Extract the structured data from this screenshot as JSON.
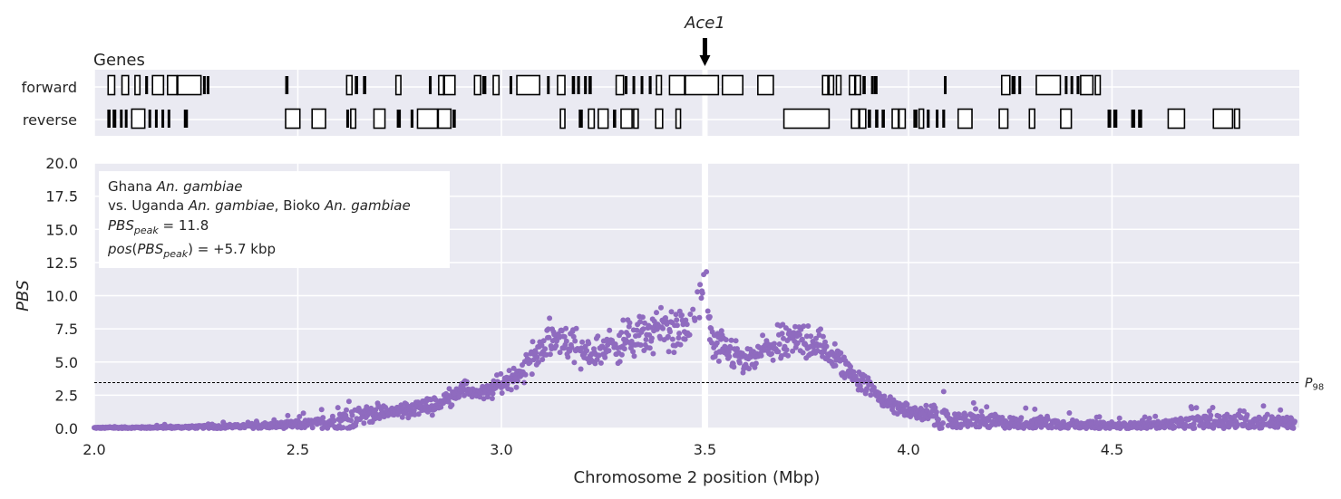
{
  "gene_annotation": {
    "label": "Ace1",
    "x": 3.5
  },
  "genes_panel": {
    "title": "Genes",
    "track_labels": [
      "forward",
      "reverse"
    ],
    "forward": [
      [
        2.034,
        2.05
      ],
      [
        2.068,
        2.084
      ],
      [
        2.1,
        2.112
      ],
      [
        2.125,
        2.132
      ],
      [
        2.143,
        2.17
      ],
      [
        2.18,
        2.203
      ],
      [
        2.205,
        2.262
      ],
      [
        2.267,
        2.271
      ],
      [
        2.276,
        2.28
      ],
      [
        2.469,
        2.477
      ],
      [
        2.62,
        2.633
      ],
      [
        2.64,
        2.648
      ],
      [
        2.66,
        2.668
      ],
      [
        2.741,
        2.753
      ],
      [
        2.822,
        2.826
      ],
      [
        2.846,
        2.858
      ],
      [
        2.86,
        2.886
      ],
      [
        2.934,
        2.949
      ],
      [
        2.953,
        2.963
      ],
      [
        2.98,
        2.994
      ],
      [
        3.02,
        3.024
      ],
      [
        3.038,
        3.094
      ],
      [
        3.112,
        3.116
      ],
      [
        3.138,
        3.156
      ],
      [
        3.173,
        3.181
      ],
      [
        3.186,
        3.193
      ],
      [
        3.203,
        3.21
      ],
      [
        3.214,
        3.222
      ],
      [
        3.282,
        3.3
      ],
      [
        3.303,
        3.307
      ],
      [
        3.322,
        3.328
      ],
      [
        3.342,
        3.348
      ],
      [
        3.362,
        3.369
      ],
      [
        3.381,
        3.393
      ],
      [
        3.413,
        3.45
      ],
      [
        3.452,
        3.533
      ],
      [
        3.543,
        3.593
      ],
      [
        3.63,
        3.668
      ],
      [
        3.789,
        3.802
      ],
      [
        3.805,
        3.816
      ],
      [
        3.823,
        3.834
      ],
      [
        3.855,
        3.868
      ],
      [
        3.87,
        3.882
      ],
      [
        3.887,
        3.895
      ],
      [
        3.908,
        3.914
      ],
      [
        3.915,
        3.924
      ],
      [
        4.087,
        4.091
      ],
      [
        4.229,
        4.249
      ],
      [
        4.253,
        4.263
      ],
      [
        4.27,
        4.275
      ],
      [
        4.314,
        4.373
      ],
      [
        4.384,
        4.388
      ],
      [
        4.398,
        4.402
      ],
      [
        4.413,
        4.42
      ],
      [
        4.423,
        4.453
      ],
      [
        4.459,
        4.471
      ]
    ],
    "reverse": [
      [
        2.032,
        2.04
      ],
      [
        2.045,
        2.054
      ],
      [
        2.063,
        2.069
      ],
      [
        2.075,
        2.081
      ],
      [
        2.092,
        2.124
      ],
      [
        2.133,
        2.139
      ],
      [
        2.149,
        2.155
      ],
      [
        2.165,
        2.171
      ],
      [
        2.18,
        2.186
      ],
      [
        2.22,
        2.23
      ],
      [
        2.47,
        2.505
      ],
      [
        2.535,
        2.568
      ],
      [
        2.619,
        2.624
      ],
      [
        2.63,
        2.642
      ],
      [
        2.687,
        2.714
      ],
      [
        2.743,
        2.753
      ],
      [
        2.777,
        2.784
      ],
      [
        2.794,
        2.843
      ],
      [
        2.845,
        2.876
      ],
      [
        2.88,
        2.888
      ],
      [
        3.145,
        3.156
      ],
      [
        3.19,
        3.2
      ],
      [
        3.214,
        3.228
      ],
      [
        3.238,
        3.262
      ],
      [
        3.274,
        3.282
      ],
      [
        3.294,
        3.321
      ],
      [
        3.325,
        3.336
      ],
      [
        3.379,
        3.396
      ],
      [
        3.429,
        3.44
      ],
      [
        3.694,
        3.805
      ],
      [
        3.86,
        3.878
      ],
      [
        3.88,
        3.895
      ],
      [
        3.9,
        3.908
      ],
      [
        3.918,
        3.926
      ],
      [
        3.934,
        3.942
      ],
      [
        3.96,
        3.975
      ],
      [
        3.977,
        3.992
      ],
      [
        4.012,
        4.022
      ],
      [
        4.026,
        4.037
      ],
      [
        4.045,
        4.052
      ],
      [
        4.067,
        4.073
      ],
      [
        4.083,
        4.09
      ],
      [
        4.122,
        4.156
      ],
      [
        4.223,
        4.244
      ],
      [
        4.297,
        4.31
      ],
      [
        4.374,
        4.4
      ],
      [
        4.489,
        4.498
      ],
      [
        4.503,
        4.513
      ],
      [
        4.547,
        4.557
      ],
      [
        4.564,
        4.574
      ],
      [
        4.638,
        4.678
      ],
      [
        4.749,
        4.796
      ],
      [
        4.801,
        4.813
      ]
    ]
  },
  "chart_data": {
    "type": "scatter",
    "series": [
      {
        "color": "#8f6bbf",
        "points": []
      }
    ],
    "profile": [
      [
        2.0,
        0.05
      ],
      [
        2.2,
        0.1
      ],
      [
        2.4,
        0.2
      ],
      [
        2.55,
        0.45
      ],
      [
        2.65,
        1.0
      ],
      [
        2.75,
        1.3
      ],
      [
        2.85,
        1.9
      ],
      [
        2.9,
        3.0
      ],
      [
        2.96,
        2.6
      ],
      [
        3.0,
        3.4
      ],
      [
        3.05,
        4.3
      ],
      [
        3.1,
        6.2
      ],
      [
        3.15,
        7.0
      ],
      [
        3.2,
        5.5
      ],
      [
        3.25,
        6.0
      ],
      [
        3.3,
        6.6
      ],
      [
        3.35,
        7.0
      ],
      [
        3.4,
        7.6
      ],
      [
        3.45,
        7.2
      ],
      [
        3.48,
        8.5
      ],
      [
        3.5,
        10.3
      ],
      [
        3.52,
        6.0
      ],
      [
        3.57,
        5.7
      ],
      [
        3.6,
        4.8
      ],
      [
        3.65,
        6.0
      ],
      [
        3.7,
        6.3
      ],
      [
        3.75,
        6.8
      ],
      [
        3.8,
        5.8
      ],
      [
        3.85,
        4.5
      ],
      [
        3.9,
        3.2
      ],
      [
        3.95,
        1.9
      ],
      [
        4.0,
        1.3
      ],
      [
        4.1,
        0.8
      ],
      [
        4.2,
        0.6
      ],
      [
        4.3,
        0.5
      ],
      [
        4.4,
        0.4
      ],
      [
        4.5,
        0.25
      ],
      [
        4.6,
        0.3
      ],
      [
        4.7,
        0.55
      ],
      [
        4.8,
        0.7
      ],
      [
        4.95,
        0.5
      ]
    ],
    "xlabel": "Chromosome 2 position (Mbp)",
    "ylabel": "PBS",
    "xlim": [
      2.0,
      4.96
    ],
    "ylim": [
      0.0,
      20.0
    ],
    "xticks": [
      "2.0",
      "2.5",
      "3.0",
      "3.5",
      "4.0",
      "4.5"
    ],
    "yticks": [
      "0.0",
      "2.5",
      "5.0",
      "7.5",
      "10.0",
      "12.5",
      "15.0",
      "17.5",
      "20.0"
    ],
    "threshold": {
      "value": 3.45,
      "label": "P98"
    },
    "gap": {
      "x": 3.5
    },
    "grid": true,
    "background": "#eaeaf2",
    "legend": {
      "line1": "Ghana An. gambiae",
      "line2": "vs. Uganda An. gambiae, Bioko An. gambiae",
      "line3": "PBS_peak = 11.8",
      "line4": "pos(PBS_peak) = +5.7 kbp",
      "placement": "upper-left"
    }
  }
}
